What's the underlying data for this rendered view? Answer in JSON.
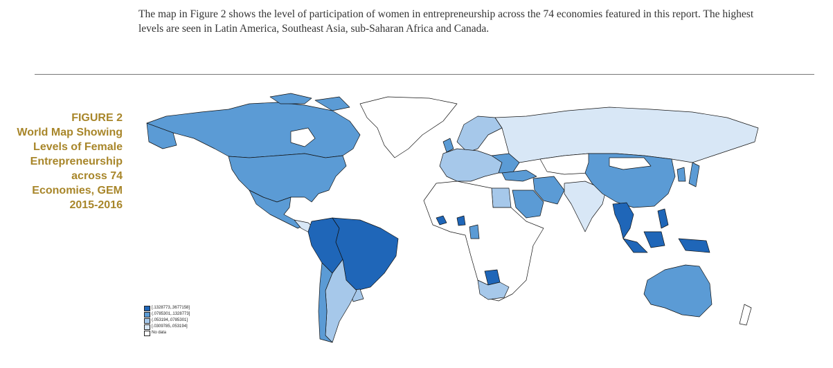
{
  "paragraph": "The map in Figure 2 shows the level of participation of women in entrepreneurship across the 74 economies featured in this report. The highest levels are seen in Latin America, Southeast Asia, sub-Saharan Africa and Canada.",
  "figure": {
    "label": "FIGURE 2",
    "title_lines": [
      "World Map Showing",
      "Levels of Female",
      "Entrepreneurship",
      "across 74",
      "Economies, GEM",
      "2015-2016"
    ]
  },
  "legend": [
    {
      "label": "[.1328773,.3677158]",
      "color": "#1f66b8"
    },
    {
      "label": "(.0785301,.1328773]",
      "color": "#5b9bd5"
    },
    {
      "label": "(.053194,.0785301]",
      "color": "#a6c8ea"
    },
    {
      "label": "[.0309785,.053194]",
      "color": "#d8e7f6"
    },
    {
      "label": "No data",
      "color": "#ffffff"
    }
  ]
}
